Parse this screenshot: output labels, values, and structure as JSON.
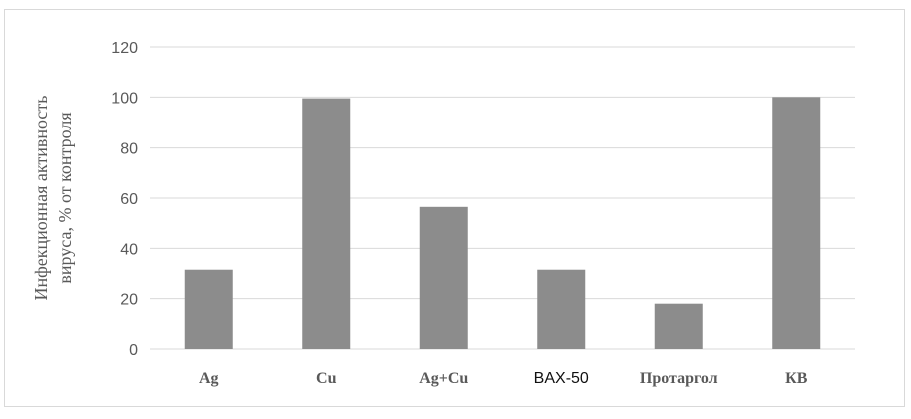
{
  "chart_data": {
    "type": "bar",
    "categories": [
      "Ag",
      "Cu",
      "Ag+Cu",
      "BAX-50",
      "Протаргол",
      "КВ"
    ],
    "values": [
      31.5,
      99.5,
      56.5,
      31.5,
      18,
      100
    ],
    "ylabel_lines": [
      "Инфекционная активность",
      "вируса, % от контроля"
    ],
    "ylim": [
      0,
      120
    ],
    "yticks": [
      0,
      20,
      40,
      60,
      80,
      100,
      120
    ],
    "grid": true,
    "bar_color": "#8c8c8c",
    "grid_color": "#d9d9d9"
  }
}
